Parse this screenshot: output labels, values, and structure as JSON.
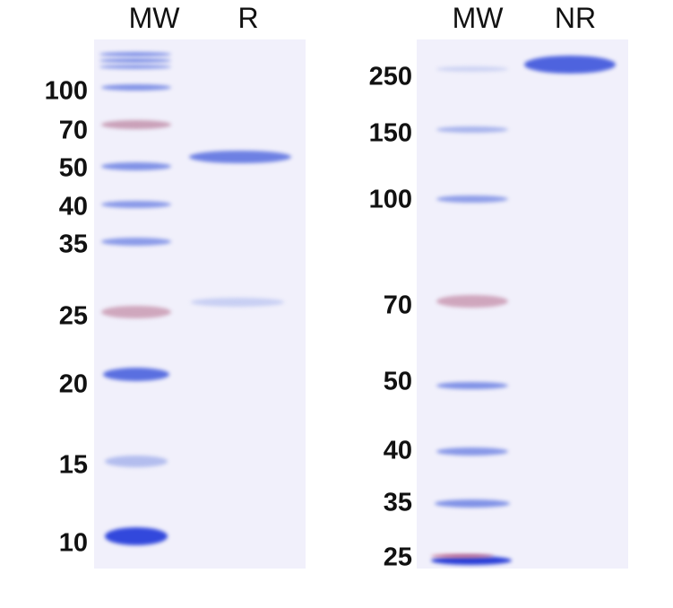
{
  "left_gel": {
    "lanes": [
      "MW",
      "R"
    ],
    "markers": [
      "100",
      "70",
      "50",
      "40",
      "35",
      "25",
      "20",
      "15",
      "10"
    ]
  },
  "right_gel": {
    "lanes": [
      "MW",
      "NR"
    ],
    "markers": [
      "250",
      "150",
      "100",
      "70",
      "50",
      "40",
      "35",
      "25"
    ]
  },
  "colors": {
    "band_blue": "#5a6fe0",
    "band_red": "#c27a9a",
    "gel_background": "#f1f0fb"
  }
}
